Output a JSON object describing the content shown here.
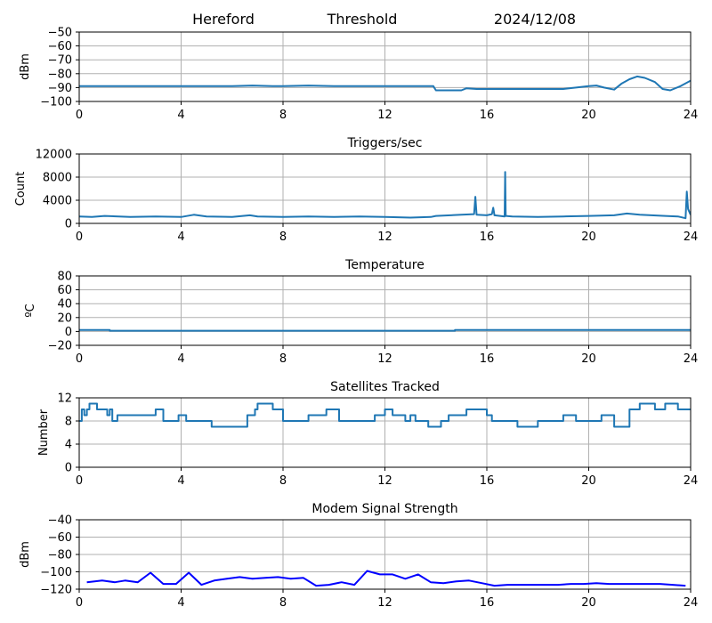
{
  "header": {
    "station": "Hereford",
    "label": "Threshold",
    "date": "2024/12/08"
  },
  "colors": {
    "series": "#1f77b4",
    "modem": "#0000ff",
    "grid": "#b0b0b0",
    "axis": "#000000"
  },
  "chart_data": [
    {
      "id": "threshold",
      "type": "line",
      "title": "",
      "xlabel": "",
      "ylabel": "dBm",
      "xlim": [
        0,
        24
      ],
      "ylim": [
        -100,
        -50
      ],
      "xticks": [
        0,
        4,
        8,
        12,
        16,
        20,
        24
      ],
      "yticks": [
        -100,
        -90,
        -80,
        -70,
        -60,
        -50
      ],
      "grid": true,
      "series": [
        {
          "x": [
            0,
            2,
            4,
            6,
            6.8,
            7.6,
            8,
            9,
            10,
            12,
            13.9,
            14,
            14.5,
            15,
            15.2,
            15.6,
            16,
            16.4,
            18,
            19,
            19.5,
            20,
            20.3,
            20.6,
            21,
            21.3,
            21.6,
            21.9,
            22.2,
            22.6,
            22.9,
            23.2,
            23.6,
            24
          ],
          "y": [
            -89,
            -89,
            -89,
            -89,
            -88.5,
            -89,
            -89,
            -88.5,
            -89,
            -89,
            -89,
            -92,
            -92,
            -92,
            -90.5,
            -91,
            -91,
            -91,
            -91,
            -91,
            -90,
            -89,
            -88.5,
            -90,
            -91.5,
            -87,
            -84,
            -82,
            -83,
            -86,
            -91,
            -92,
            -89,
            -85
          ]
        }
      ]
    },
    {
      "id": "triggers",
      "type": "line",
      "title": "Triggers/sec",
      "xlabel": "",
      "ylabel": "Count",
      "xlim": [
        0,
        24
      ],
      "ylim": [
        0,
        12000
      ],
      "xticks": [
        0,
        4,
        8,
        12,
        16,
        20,
        24
      ],
      "yticks": [
        0,
        4000,
        8000,
        12000
      ],
      "grid": true,
      "series": [
        {
          "x": [
            0,
            0.5,
            1,
            2,
            3,
            4,
            4.5,
            5,
            6,
            6.7,
            7,
            8,
            9,
            10,
            11,
            12,
            13,
            13.8,
            14,
            15,
            15.5,
            15.55,
            15.6,
            16,
            16.2,
            16.25,
            16.3,
            16.7,
            16.72,
            16.74,
            17,
            18,
            19,
            20,
            21,
            21.5,
            22,
            23,
            23.5,
            23.8,
            23.85,
            23.9,
            24
          ],
          "y": [
            1200,
            1100,
            1300,
            1100,
            1200,
            1100,
            1500,
            1200,
            1100,
            1400,
            1200,
            1100,
            1200,
            1100,
            1200,
            1100,
            1000,
            1100,
            1300,
            1500,
            1600,
            4600,
            1500,
            1400,
            1600,
            2700,
            1400,
            1200,
            8900,
            1300,
            1200,
            1100,
            1200,
            1300,
            1400,
            1700,
            1500,
            1300,
            1200,
            900,
            5500,
            2500,
            1500
          ]
        }
      ]
    },
    {
      "id": "temperature",
      "type": "line",
      "title": "Temperature",
      "xlabel": "",
      "ylabel": "ºC",
      "xlim": [
        0,
        24
      ],
      "ylim": [
        -20,
        80
      ],
      "xticks": [
        0,
        4,
        8,
        12,
        16,
        20,
        24
      ],
      "yticks": [
        -20,
        0,
        20,
        40,
        60,
        80
      ],
      "grid": true,
      "series": [
        {
          "x": [
            0,
            1.15,
            1.2,
            14.7,
            14.75,
            24
          ],
          "y": [
            2,
            2,
            1,
            1,
            2,
            2
          ]
        }
      ]
    },
    {
      "id": "satellites",
      "type": "line",
      "title": "Satellites Tracked",
      "xlabel": "",
      "ylabel": "Number",
      "xlim": [
        0,
        24
      ],
      "ylim": [
        0,
        12
      ],
      "xticks": [
        0,
        4,
        8,
        12,
        16,
        20,
        24
      ],
      "yticks": [
        0,
        4,
        8,
        12
      ],
      "grid": true,
      "series": [
        {
          "x": [
            0,
            0.1,
            0.2,
            0.3,
            0.4,
            0.6,
            0.7,
            0.9,
            1.1,
            1.2,
            1.3,
            1.5,
            2.8,
            3.0,
            3.3,
            3.9,
            4.2,
            4.3,
            5.2,
            6.3,
            6.6,
            6.9,
            7.0,
            7.6,
            7.8,
            8.0,
            8.5,
            9.0,
            9.4,
            9.7,
            10.2,
            11.3,
            11.6,
            12.0,
            12.3,
            12.8,
            13.0,
            13.2,
            13.7,
            14.2,
            14.5,
            14.8,
            15.2,
            15.6,
            16.0,
            16.2,
            17.2,
            17.5,
            18.0,
            18.5,
            19.0,
            19.5,
            20.0,
            20.5,
            21.0,
            21.3,
            21.6,
            22.0,
            22.6,
            23.0,
            23.5,
            23.9,
            24
          ],
          "y": [
            8,
            10,
            9,
            10,
            11,
            11,
            10,
            10,
            9,
            10,
            8,
            9,
            9,
            10,
            8,
            9,
            8,
            8,
            7,
            7,
            9,
            10,
            11,
            10,
            10,
            8,
            8,
            9,
            9,
            10,
            8,
            8,
            9,
            10,
            9,
            8,
            9,
            8,
            7,
            8,
            9,
            9,
            10,
            10,
            9,
            8,
            7,
            7,
            8,
            8,
            9,
            8,
            8,
            9,
            7,
            7,
            10,
            11,
            10,
            11,
            10,
            10,
            10
          ]
        }
      ]
    },
    {
      "id": "modem",
      "type": "line",
      "title": "Modem Signal Strength",
      "xlabel": "",
      "ylabel": "dBm",
      "xlim": [
        0,
        24
      ],
      "ylim": [
        -120,
        -40
      ],
      "xticks": [
        0,
        4,
        8,
        12,
        16,
        20,
        24
      ],
      "yticks": [
        -120,
        -100,
        -80,
        -60,
        -40
      ],
      "grid": true,
      "series": [
        {
          "x": [
            0.3,
            0.9,
            1.4,
            1.8,
            2.3,
            2.8,
            3.3,
            3.8,
            4.3,
            4.8,
            5.3,
            5.8,
            6.3,
            6.8,
            7.3,
            7.8,
            8.3,
            8.8,
            9.3,
            9.8,
            10.3,
            10.8,
            11.3,
            11.8,
            12.3,
            12.8,
            13.3,
            13.8,
            14.3,
            14.8,
            15.3,
            15.8,
            16.3,
            16.8,
            17.3,
            17.8,
            18.3,
            18.8,
            19.3,
            19.8,
            20.3,
            20.8,
            21.3,
            21.8,
            22.3,
            22.8,
            23.3,
            23.8
          ],
          "y": [
            -112,
            -110,
            -112,
            -110,
            -112,
            -101,
            -114,
            -114,
            -101,
            -115,
            -110,
            -108,
            -106,
            -108,
            -107,
            -106,
            -108,
            -107,
            -116,
            -115,
            -112,
            -115,
            -99,
            -103,
            -103,
            -108,
            -103,
            -112,
            -113,
            -111,
            -110,
            -113,
            -116,
            -115,
            -115,
            -115,
            -115,
            -115,
            -114,
            -114,
            -113,
            -114,
            -114,
            -114,
            -114,
            -114,
            -115,
            -116
          ]
        }
      ]
    }
  ]
}
